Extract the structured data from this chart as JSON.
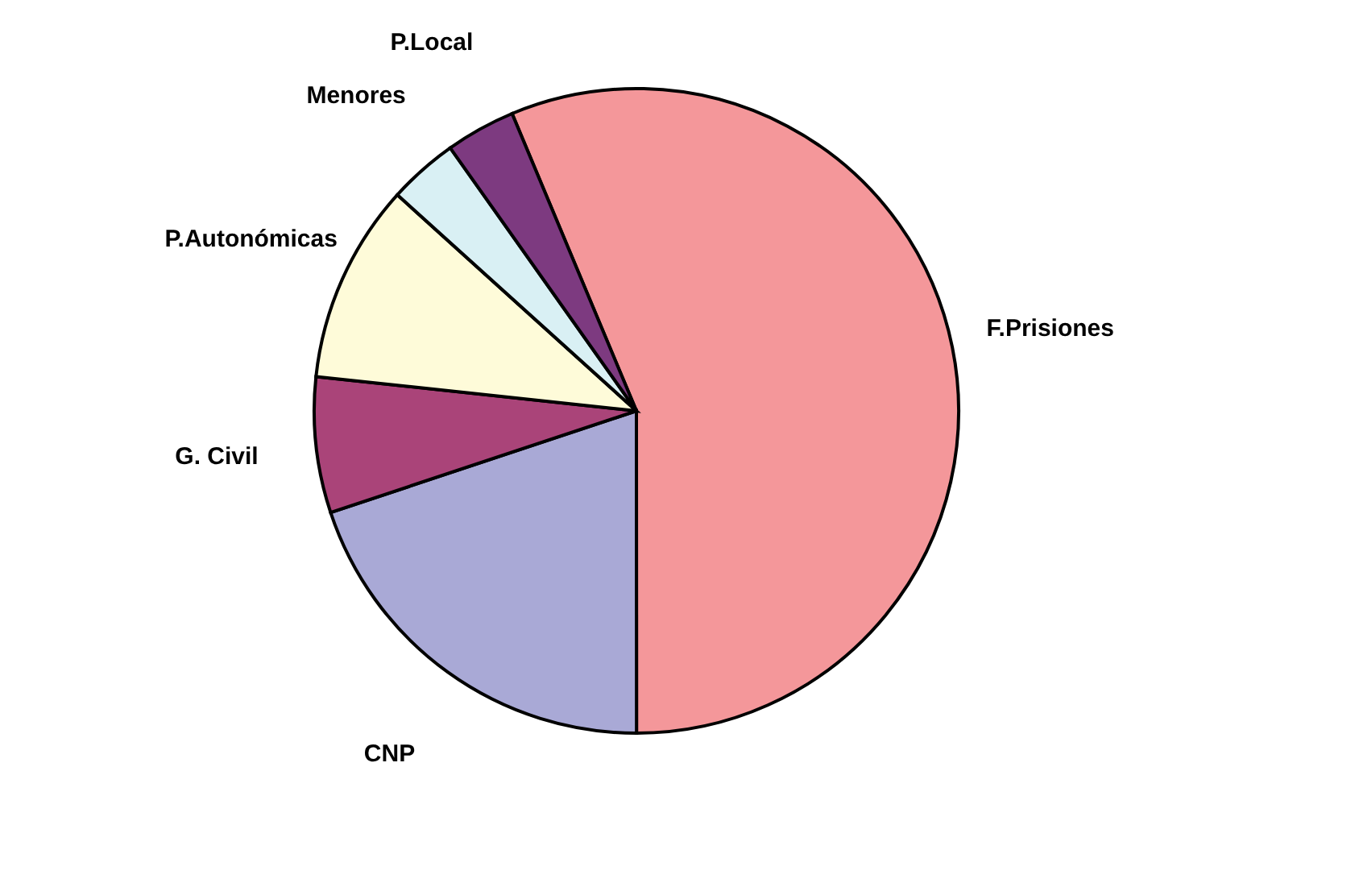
{
  "chart_data": {
    "type": "pie",
    "categories": [
      "F.Prisiones",
      "CNP",
      "G. Civil",
      "P.Autonómicas",
      "Menores",
      "P.Local"
    ],
    "values": [
      56.3,
      19.9,
      6.8,
      10.0,
      3.5,
      3.5
    ],
    "colors": [
      "#f4979a",
      "#a9a9d6",
      "#aa4479",
      "#fefbd9",
      "#d9f0f4",
      "#7d3a80"
    ],
    "legend": false
  }
}
